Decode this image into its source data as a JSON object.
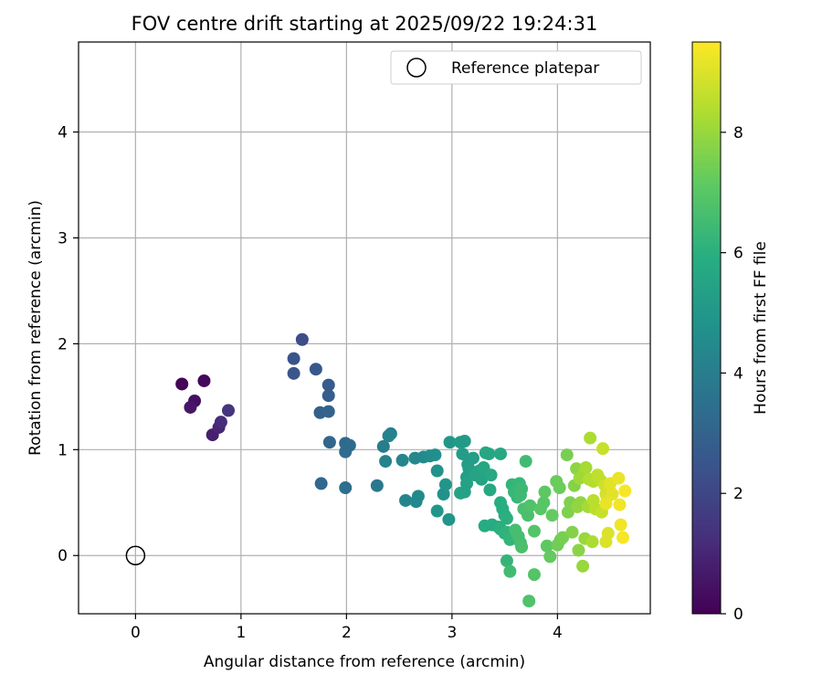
{
  "chart_data": {
    "type": "scatter",
    "title": "FOV centre drift starting at 2025/09/22 19:24:31",
    "xlabel": "Angular distance from reference (arcmin)",
    "ylabel": "Rotation from reference (arcmin)",
    "xlim": [
      -0.54,
      4.88
    ],
    "ylim": [
      -0.55,
      4.85
    ],
    "xticks": [
      "0",
      "1",
      "2",
      "3",
      "4"
    ],
    "yticks": [
      "0",
      "1",
      "2",
      "3",
      "4"
    ],
    "grid": true,
    "legend_position": "top-right",
    "colorbar": {
      "label": "Hours from first FF file",
      "range": [
        0,
        9.5
      ],
      "ticks": [
        "0",
        "2",
        "4",
        "6",
        "8"
      ],
      "colormap": "viridis"
    },
    "reference": {
      "name": "Reference platepar",
      "x": 0,
      "y": 0
    },
    "points": [
      {
        "x": 0.44,
        "y": 1.62,
        "h": 0.1
      },
      {
        "x": 0.65,
        "y": 1.65,
        "h": 0.2
      },
      {
        "x": 0.56,
        "y": 1.46,
        "h": 0.4
      },
      {
        "x": 0.52,
        "y": 1.4,
        "h": 0.6
      },
      {
        "x": 0.73,
        "y": 1.14,
        "h": 0.8
      },
      {
        "x": 0.79,
        "y": 1.21,
        "h": 1.0
      },
      {
        "x": 0.81,
        "y": 1.26,
        "h": 1.2
      },
      {
        "x": 0.88,
        "y": 1.37,
        "h": 1.4
      },
      {
        "x": 1.58,
        "y": 2.04,
        "h": 2.2
      },
      {
        "x": 1.5,
        "y": 1.86,
        "h": 2.4
      },
      {
        "x": 1.5,
        "y": 1.72,
        "h": 2.5
      },
      {
        "x": 1.71,
        "y": 1.76,
        "h": 2.6
      },
      {
        "x": 1.83,
        "y": 1.61,
        "h": 2.7
      },
      {
        "x": 1.83,
        "y": 1.51,
        "h": 2.8
      },
      {
        "x": 1.75,
        "y": 1.35,
        "h": 2.9
      },
      {
        "x": 1.83,
        "y": 1.36,
        "h": 3.0
      },
      {
        "x": 1.84,
        "y": 1.07,
        "h": 3.1
      },
      {
        "x": 1.76,
        "y": 0.68,
        "h": 3.2
      },
      {
        "x": 1.99,
        "y": 1.06,
        "h": 3.2
      },
      {
        "x": 2.03,
        "y": 1.04,
        "h": 3.3
      },
      {
        "x": 1.99,
        "y": 0.98,
        "h": 3.3
      },
      {
        "x": 1.99,
        "y": 0.64,
        "h": 3.4
      },
      {
        "x": 2.29,
        "y": 0.66,
        "h": 3.8
      },
      {
        "x": 2.35,
        "y": 1.03,
        "h": 4.0
      },
      {
        "x": 2.42,
        "y": 1.15,
        "h": 4.1
      },
      {
        "x": 2.4,
        "y": 1.13,
        "h": 4.2
      },
      {
        "x": 2.37,
        "y": 0.89,
        "h": 4.2
      },
      {
        "x": 2.56,
        "y": 0.52,
        "h": 4.3
      },
      {
        "x": 2.53,
        "y": 0.9,
        "h": 4.3
      },
      {
        "x": 2.65,
        "y": 0.92,
        "h": 4.4
      },
      {
        "x": 2.66,
        "y": 0.51,
        "h": 4.4
      },
      {
        "x": 2.68,
        "y": 0.56,
        "h": 4.5
      },
      {
        "x": 2.73,
        "y": 0.93,
        "h": 4.5
      },
      {
        "x": 2.79,
        "y": 0.94,
        "h": 4.6
      },
      {
        "x": 2.84,
        "y": 0.95,
        "h": 4.7
      },
      {
        "x": 2.86,
        "y": 0.8,
        "h": 4.8
      },
      {
        "x": 2.92,
        "y": 0.58,
        "h": 4.8
      },
      {
        "x": 2.94,
        "y": 0.67,
        "h": 4.9
      },
      {
        "x": 2.97,
        "y": 0.34,
        "h": 4.9
      },
      {
        "x": 2.86,
        "y": 0.42,
        "h": 5.0
      },
      {
        "x": 2.98,
        "y": 1.07,
        "h": 5.0
      },
      {
        "x": 3.08,
        "y": 1.07,
        "h": 5.1
      },
      {
        "x": 3.12,
        "y": 1.08,
        "h": 5.1
      },
      {
        "x": 3.1,
        "y": 0.96,
        "h": 5.2
      },
      {
        "x": 3.15,
        "y": 0.86,
        "h": 5.2
      },
      {
        "x": 3.2,
        "y": 0.92,
        "h": 5.3
      },
      {
        "x": 3.16,
        "y": 0.82,
        "h": 5.3
      },
      {
        "x": 3.14,
        "y": 0.74,
        "h": 5.3
      },
      {
        "x": 3.14,
        "y": 0.68,
        "h": 5.4
      },
      {
        "x": 3.12,
        "y": 0.6,
        "h": 5.4
      },
      {
        "x": 3.08,
        "y": 0.59,
        "h": 5.4
      },
      {
        "x": 3.22,
        "y": 0.76,
        "h": 5.5
      },
      {
        "x": 3.26,
        "y": 0.8,
        "h": 5.5
      },
      {
        "x": 3.28,
        "y": 0.72,
        "h": 5.5
      },
      {
        "x": 3.3,
        "y": 0.83,
        "h": 5.6
      },
      {
        "x": 3.32,
        "y": 0.97,
        "h": 5.6
      },
      {
        "x": 3.35,
        "y": 0.96,
        "h": 5.6
      },
      {
        "x": 3.37,
        "y": 0.76,
        "h": 5.7
      },
      {
        "x": 3.36,
        "y": 0.62,
        "h": 5.7
      },
      {
        "x": 3.46,
        "y": 0.96,
        "h": 5.7
      },
      {
        "x": 3.31,
        "y": 0.28,
        "h": 5.8
      },
      {
        "x": 3.38,
        "y": 0.29,
        "h": 5.8
      },
      {
        "x": 3.44,
        "y": 0.27,
        "h": 5.8
      },
      {
        "x": 3.46,
        "y": 0.5,
        "h": 5.9
      },
      {
        "x": 3.48,
        "y": 0.44,
        "h": 5.9
      },
      {
        "x": 3.5,
        "y": 0.38,
        "h": 5.9
      },
      {
        "x": 3.52,
        "y": 0.35,
        "h": 6.0
      },
      {
        "x": 3.46,
        "y": 0.25,
        "h": 6.0
      },
      {
        "x": 3.5,
        "y": 0.21,
        "h": 6.1
      },
      {
        "x": 3.52,
        "y": 0.22,
        "h": 6.1
      },
      {
        "x": 3.55,
        "y": 0.15,
        "h": 6.2
      },
      {
        "x": 3.52,
        "y": -0.05,
        "h": 6.2
      },
      {
        "x": 3.57,
        "y": 0.67,
        "h": 6.2
      },
      {
        "x": 3.59,
        "y": 0.6,
        "h": 6.3
      },
      {
        "x": 3.62,
        "y": 0.55,
        "h": 6.3
      },
      {
        "x": 3.64,
        "y": 0.68,
        "h": 6.3
      },
      {
        "x": 3.66,
        "y": 0.63,
        "h": 6.4
      },
      {
        "x": 3.65,
        "y": 0.57,
        "h": 6.4
      },
      {
        "x": 3.7,
        "y": 0.89,
        "h": 6.5
      },
      {
        "x": 3.55,
        "y": -0.15,
        "h": 6.5
      },
      {
        "x": 3.6,
        "y": 0.24,
        "h": 6.6
      },
      {
        "x": 3.63,
        "y": 0.18,
        "h": 6.6
      },
      {
        "x": 3.65,
        "y": 0.12,
        "h": 6.6
      },
      {
        "x": 3.66,
        "y": 0.08,
        "h": 6.7
      },
      {
        "x": 3.68,
        "y": 0.44,
        "h": 6.7
      },
      {
        "x": 3.72,
        "y": 0.38,
        "h": 6.7
      },
      {
        "x": 3.74,
        "y": 0.47,
        "h": 6.8
      },
      {
        "x": 3.73,
        "y": -0.43,
        "h": 6.8
      },
      {
        "x": 3.78,
        "y": -0.18,
        "h": 6.9
      },
      {
        "x": 3.78,
        "y": 0.23,
        "h": 6.9
      },
      {
        "x": 3.84,
        "y": 0.44,
        "h": 7.0
      },
      {
        "x": 3.87,
        "y": 0.5,
        "h": 7.0
      },
      {
        "x": 3.88,
        "y": 0.6,
        "h": 7.1
      },
      {
        "x": 3.9,
        "y": 0.09,
        "h": 7.1
      },
      {
        "x": 3.93,
        "y": -0.01,
        "h": 7.2
      },
      {
        "x": 3.95,
        "y": 0.38,
        "h": 7.2
      },
      {
        "x": 3.99,
        "y": 0.7,
        "h": 7.3
      },
      {
        "x": 4.02,
        "y": 0.64,
        "h": 7.3
      },
      {
        "x": 4.0,
        "y": 0.1,
        "h": 7.4
      },
      {
        "x": 4.03,
        "y": 0.15,
        "h": 7.4
      },
      {
        "x": 4.05,
        "y": 0.17,
        "h": 7.5
      },
      {
        "x": 4.09,
        "y": 0.95,
        "h": 7.5
      },
      {
        "x": 4.1,
        "y": 0.41,
        "h": 7.6
      },
      {
        "x": 4.12,
        "y": 0.5,
        "h": 7.6
      },
      {
        "x": 4.14,
        "y": 0.22,
        "h": 7.7
      },
      {
        "x": 4.16,
        "y": 0.66,
        "h": 7.7
      },
      {
        "x": 4.18,
        "y": 0.82,
        "h": 7.8
      },
      {
        "x": 4.2,
        "y": 0.05,
        "h": 7.8
      },
      {
        "x": 4.19,
        "y": 0.46,
        "h": 7.9
      },
      {
        "x": 4.22,
        "y": 0.5,
        "h": 7.9
      },
      {
        "x": 4.24,
        "y": -0.1,
        "h": 8.0
      },
      {
        "x": 4.26,
        "y": 0.16,
        "h": 8.0
      },
      {
        "x": 4.21,
        "y": 0.73,
        "h": 8.1
      },
      {
        "x": 4.25,
        "y": 0.77,
        "h": 8.1
      },
      {
        "x": 4.27,
        "y": 0.83,
        "h": 8.2
      },
      {
        "x": 4.29,
        "y": 0.46,
        "h": 8.2
      },
      {
        "x": 4.31,
        "y": 1.11,
        "h": 8.3
      },
      {
        "x": 4.33,
        "y": 0.13,
        "h": 8.3
      },
      {
        "x": 4.3,
        "y": 0.72,
        "h": 8.4
      },
      {
        "x": 4.34,
        "y": 0.7,
        "h": 8.4
      },
      {
        "x": 4.34,
        "y": 0.52,
        "h": 8.5
      },
      {
        "x": 4.36,
        "y": 0.44,
        "h": 8.5
      },
      {
        "x": 4.38,
        "y": 0.76,
        "h": 8.6
      },
      {
        "x": 4.41,
        "y": 0.71,
        "h": 8.6
      },
      {
        "x": 4.42,
        "y": 0.41,
        "h": 8.7
      },
      {
        "x": 4.43,
        "y": 1.01,
        "h": 8.7
      },
      {
        "x": 4.45,
        "y": 0.66,
        "h": 8.8
      },
      {
        "x": 4.46,
        "y": 0.58,
        "h": 8.8
      },
      {
        "x": 4.47,
        "y": 0.55,
        "h": 8.9
      },
      {
        "x": 4.49,
        "y": 0.62,
        "h": 8.9
      },
      {
        "x": 4.48,
        "y": 0.21,
        "h": 9.0
      },
      {
        "x": 4.46,
        "y": 0.13,
        "h": 9.0
      },
      {
        "x": 4.5,
        "y": 0.68,
        "h": 9.1
      },
      {
        "x": 4.52,
        "y": 0.58,
        "h": 9.1
      },
      {
        "x": 4.46,
        "y": 0.49,
        "h": 9.2
      },
      {
        "x": 4.58,
        "y": 0.73,
        "h": 9.2
      },
      {
        "x": 4.59,
        "y": 0.48,
        "h": 9.3
      },
      {
        "x": 4.6,
        "y": 0.29,
        "h": 9.3
      },
      {
        "x": 4.62,
        "y": 0.17,
        "h": 9.4
      },
      {
        "x": 4.64,
        "y": 0.61,
        "h": 9.4
      }
    ]
  }
}
